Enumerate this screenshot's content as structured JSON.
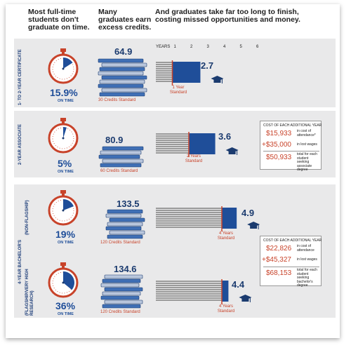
{
  "headers": {
    "col1": "Most full-time students don't graduate on time.",
    "col2": "Many graduates earn excess credits.",
    "col3": "And graduates take far too long to finish, costing missed opportunities and money."
  },
  "axis": {
    "label": "YEARS",
    "ticks": [
      "1",
      "2",
      "3",
      "4",
      "5",
      "6"
    ]
  },
  "groups": {
    "bachelors_label": "4-YEAR BACHELOR'S"
  },
  "rows": [
    {
      "label": "1- TO 2-YEAR CERTIFICATE",
      "on_time_pct": "15.9%",
      "on_time_value": 15.9,
      "on_time_label": "ON TIME",
      "credits": "64.9",
      "credits_standard": "30 Credits Standard",
      "years": "2.7",
      "years_value": 2.7,
      "standard_years": 1,
      "standard_label": "1 Year\nStandard"
    },
    {
      "label": "2-YEAR ASSOCIATE",
      "on_time_pct": "5%",
      "on_time_value": 5,
      "on_time_label": "ON TIME",
      "credits": "80.9",
      "credits_standard": "60 Credits Standard",
      "years": "3.6",
      "years_value": 3.6,
      "standard_years": 2,
      "standard_label": "2 Years\nStandard"
    },
    {
      "label": "(NON-FLAGSHIP)",
      "on_time_pct": "19%",
      "on_time_value": 19,
      "on_time_label": "ON TIME",
      "credits": "133.5",
      "credits_standard": "120 Credits Standard",
      "years": "4.9",
      "years_value": 4.9,
      "standard_years": 4,
      "standard_label": "4 Years\nStandard"
    },
    {
      "label": "(FLAGSHIP/VERY HIGH RESEARCH)",
      "on_time_pct": "36%",
      "on_time_value": 36,
      "on_time_label": "ON TIME",
      "credits": "134.6",
      "credits_standard": "120 Credits Standard",
      "years": "4.4",
      "years_value": 4.4,
      "standard_years": 4,
      "standard_label": "4 Years\nStandard"
    }
  ],
  "cost_boxes": [
    {
      "title": "COST OF EACH ADDITIONAL YEAR",
      "attendance": "$15,933",
      "attendance_note": "in cost of attendance*",
      "wages": "+$35,000",
      "wages_note": "in lost wages",
      "total": "$50,933",
      "total_note": "total for each student seeking associate degree"
    },
    {
      "title": "COST OF EACH ADDITIONAL YEAR",
      "attendance": "$22,826",
      "attendance_note": "in cost of attendance",
      "wages": "+$45,327",
      "wages_note": "in lost wages",
      "total": "$68,153",
      "total_note": "total for each student seeking bachelor's degree"
    }
  ],
  "colors": {
    "blue": "#1f4e99",
    "navy": "#1b3b6f",
    "red": "#c8432a",
    "gray_bar": "#9a9a9a",
    "band": "#e9e9ea",
    "book_a": "#3f6fb5",
    "book_b": "#b9c6dc"
  }
}
